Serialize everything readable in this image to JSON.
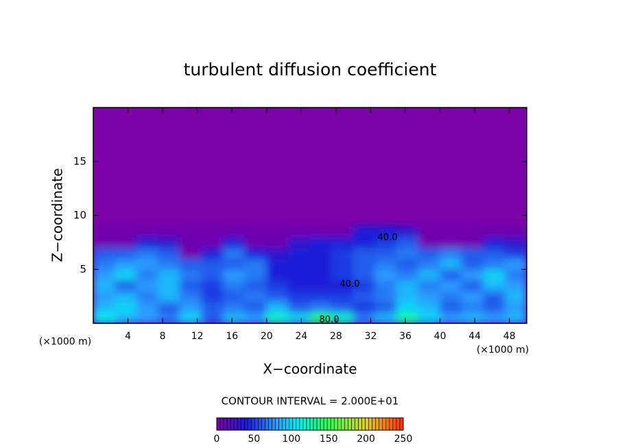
{
  "chart_data": {
    "type": "heatmap",
    "title": "turbulent diffusion coefficient",
    "xlabel": "X−coordinate",
    "ylabel": "Z−coordinate",
    "x_unit": "(×1000 m)",
    "y_unit": "(×1000 m)",
    "xlim": [
      0,
      50
    ],
    "ylim": [
      0,
      20
    ],
    "xticks": [
      4,
      8,
      12,
      16,
      20,
      24,
      28,
      32,
      36,
      40,
      44,
      48
    ],
    "yticks": [
      5,
      10,
      15
    ],
    "x": [
      1.25,
      3.75,
      6.25,
      8.75,
      11.25,
      13.75,
      16.25,
      18.75,
      21.25,
      23.75,
      26.25,
      28.75,
      31.25,
      33.75,
      36.25,
      38.75,
      41.25,
      43.75,
      46.25,
      48.75
    ],
    "z": [
      0.5,
      1.5,
      2.5,
      3.5,
      4.5,
      5.5,
      6.5,
      7.5,
      8.5
    ],
    "values": [
      [
        110,
        90,
        80,
        70,
        100,
        60,
        90,
        80,
        120,
        100,
        140,
        120,
        70,
        90,
        130,
        100,
        80,
        90,
        80,
        90
      ],
      [
        90,
        100,
        80,
        60,
        80,
        60,
        70,
        60,
        90,
        60,
        70,
        60,
        50,
        60,
        100,
        90,
        60,
        70,
        60,
        80
      ],
      [
        80,
        90,
        70,
        90,
        70,
        50,
        60,
        70,
        60,
        50,
        50,
        50,
        60,
        70,
        90,
        80,
        70,
        80,
        60,
        90
      ],
      [
        90,
        60,
        80,
        90,
        60,
        50,
        70,
        60,
        50,
        40,
        40,
        40,
        50,
        70,
        90,
        70,
        80,
        60,
        90,
        80
      ],
      [
        80,
        100,
        70,
        90,
        70,
        60,
        80,
        70,
        40,
        40,
        40,
        50,
        60,
        80,
        70,
        90,
        60,
        80,
        100,
        70
      ],
      [
        70,
        80,
        80,
        70,
        60,
        60,
        60,
        70,
        40,
        40,
        40,
        50,
        60,
        70,
        60,
        70,
        90,
        60,
        70,
        80
      ],
      [
        60,
        60,
        70,
        60,
        5,
        40,
        70,
        40,
        30,
        40,
        40,
        50,
        60,
        60,
        70,
        60,
        70,
        60,
        60,
        50
      ],
      [
        5,
        5,
        40,
        30,
        5,
        5,
        40,
        5,
        5,
        30,
        40,
        40,
        40,
        50,
        60,
        5,
        5,
        5,
        40,
        30
      ],
      [
        5,
        5,
        5,
        5,
        5,
        5,
        5,
        5,
        5,
        5,
        5,
        5,
        40,
        40,
        30,
        5,
        5,
        5,
        5,
        5
      ]
    ],
    "contour_labels": [
      "40.0",
      "40.0",
      "80.0"
    ],
    "contour_interval_text": "CONTOUR INTERVAL = 2.000E+01",
    "colorscale": [
      {
        "value": 0,
        "color": "#7b00a8"
      },
      {
        "value": 40,
        "color": "#1a1ad8"
      },
      {
        "value": 80,
        "color": "#2a9cff"
      },
      {
        "value": 110,
        "color": "#00f0f0"
      },
      {
        "value": 150,
        "color": "#30ff50"
      },
      {
        "value": 200,
        "color": "#e0d020"
      },
      {
        "value": 250,
        "color": "#ff3010"
      }
    ],
    "colorbar_lim": [
      0,
      250
    ],
    "colorbar_ticks": [
      0,
      50,
      100,
      150,
      200,
      250
    ]
  }
}
